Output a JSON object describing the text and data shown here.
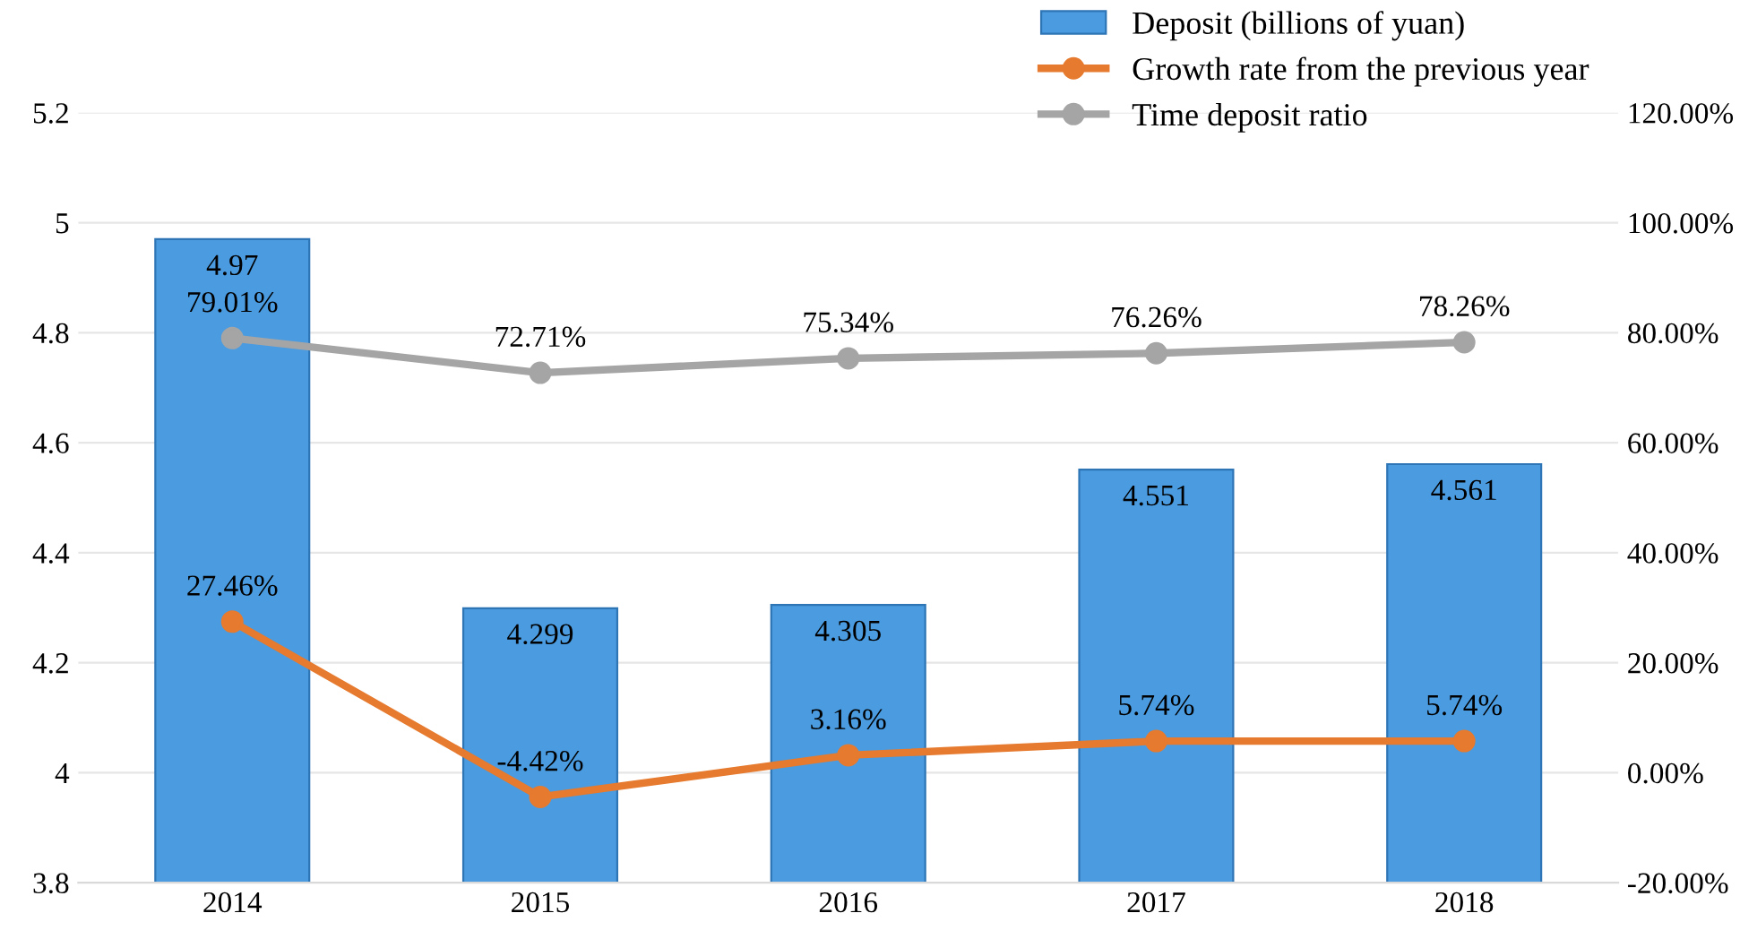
{
  "chart_data": {
    "type": "bar",
    "categories": [
      "2014",
      "2015",
      "2016",
      "2017",
      "2018"
    ],
    "series": [
      {
        "name": "Deposit (billions of yuan)",
        "color": "#4a9be0",
        "values": [
          4.97,
          4.299,
          4.305,
          4.551,
          4.561
        ],
        "value_labels": [
          "4.97",
          "4.299",
          "4.305",
          "4.551",
          "4.561"
        ]
      },
      {
        "name": "Growth rate from the previous year",
        "type": "line",
        "axis": "y2",
        "color": "#e67a2e",
        "marker": "circle",
        "values": [
          27.46,
          -4.42,
          3.16,
          5.74,
          5.74
        ],
        "value_labels": [
          "27.46%",
          "-4.42%",
          "3.16%",
          "5.74%",
          "5.74%"
        ]
      },
      {
        "name": "Time deposit ratio",
        "type": "line",
        "axis": "y2",
        "color": "#a5a5a5",
        "marker": "circle",
        "values": [
          79.01,
          72.71,
          75.34,
          76.26,
          78.26
        ],
        "value_labels": [
          "79.01%",
          "72.71%",
          "75.34%",
          "76.26%",
          "78.26%"
        ]
      }
    ],
    "ylim": [
      3.8,
      5.2
    ],
    "yticks": [
      3.8,
      {
        "value": 4,
        "label": "4"
      },
      4.2,
      4.4,
      4.6,
      4.8,
      {
        "value": 5,
        "label": "5"
      },
      5.2
    ],
    "y2lim": [
      -20,
      120
    ],
    "y2ticks": [
      {
        "value": -20,
        "label": "-20.00%"
      },
      {
        "value": 0,
        "label": "0.00%"
      },
      {
        "value": 20,
        "label": "20.00%"
      },
      {
        "value": 40,
        "label": "40.00%"
      },
      {
        "value": 60,
        "label": "60.00%"
      },
      {
        "value": 80,
        "label": "80.00%"
      },
      {
        "value": 100,
        "label": "100.00%"
      },
      {
        "value": 120,
        "label": "120.00%"
      }
    ],
    "grid": "y",
    "legend": "top right"
  }
}
